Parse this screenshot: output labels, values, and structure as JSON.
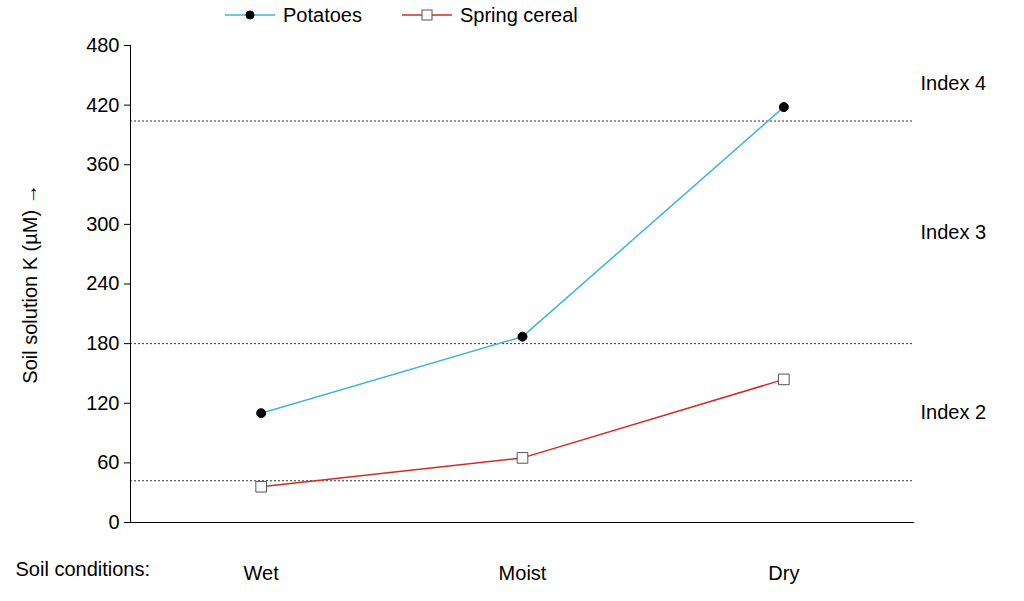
{
  "chart_data": {
    "type": "line",
    "categories": [
      "Wet",
      "Moist",
      "Dry"
    ],
    "x_label": "Soil conditions:",
    "y_label": "Soil solution K (µM)",
    "series": [
      {
        "name": "Potatoes",
        "color": "#3fb4e0",
        "marker": "circle",
        "values": [
          110,
          187,
          418
        ]
      },
      {
        "name": "Spring cereal",
        "color": "#d42a2a",
        "marker": "square",
        "values": [
          36,
          65,
          144
        ]
      }
    ],
    "reference_lines": [
      42,
      180,
      404
    ],
    "annotations": [
      "Index 2",
      "Index 3",
      "Index 4"
    ],
    "ylim": [
      0,
      480
    ],
    "yticks": [
      0,
      60,
      120,
      180,
      240,
      300,
      360,
      420,
      480
    ],
    "legend": "top",
    "grid": false
  }
}
